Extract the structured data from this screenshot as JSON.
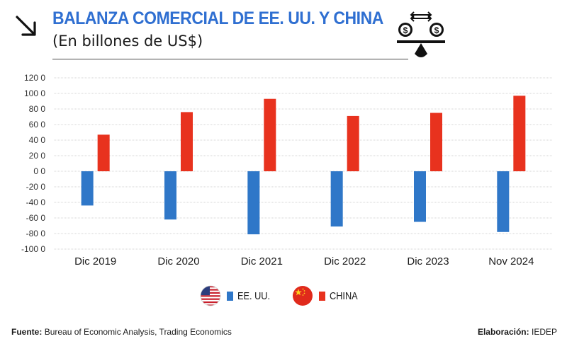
{
  "header": {
    "title": "BALANZA COMERCIAL DE EE. UU. Y CHINA",
    "subtitle": "(En billones de US$)"
  },
  "icons": {
    "arrow": "arrow-down-right-icon",
    "scale": "balance-scale-icon",
    "flag_us": "us-flag-icon",
    "flag_cn": "china-flag-icon"
  },
  "colors": {
    "title": "#2f6fd1",
    "us_series": "#2f77c8",
    "china_series": "#e8321e"
  },
  "legend": {
    "us_label": "EE. UU.",
    "china_label": "CHINA"
  },
  "footer": {
    "source_label": "Fuente:",
    "source_text": "Bureau of Economic Analysis, Trading Economics",
    "credit_label": "Elaboración:",
    "credit_text": "IEDEP"
  },
  "chart_data": {
    "type": "bar",
    "title": "BALANZA COMERCIAL DE EE. UU. Y CHINA",
    "subtitle": "(En billones de US$)",
    "xlabel": "",
    "ylabel": "",
    "categories": [
      "Dic 2019",
      "Dic 2020",
      "Dic 2021",
      "Dic 2022",
      "Dic 2023",
      "Nov 2024"
    ],
    "series": [
      {
        "name": "EE. UU.",
        "color": "#2f77c8",
        "values": [
          -44,
          -62,
          -81,
          -71,
          -65,
          -78
        ]
      },
      {
        "name": "CHINA",
        "color": "#e8321e",
        "values": [
          47,
          76,
          93,
          71,
          75,
          97
        ]
      }
    ],
    "yticks": [
      120,
      100,
      80,
      60,
      40,
      20,
      0,
      -20,
      -40,
      -60,
      -80,
      -100
    ],
    "ytick_labels": [
      "120 0",
      "100 0",
      "80 0",
      "60 0",
      "40 0",
      "20 0",
      "0 0",
      "-20 0",
      "-40 0",
      "-60 0",
      "-80 0",
      "-100 0"
    ],
    "ylim": [
      -100,
      120
    ],
    "grid": true,
    "legend_position": "bottom-center"
  }
}
